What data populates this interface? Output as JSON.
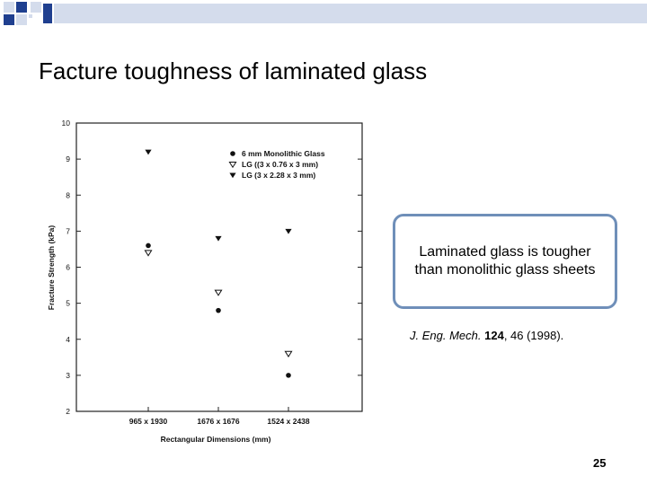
{
  "slide": {
    "title": "Facture toughness of laminated glass",
    "callout_text": "Laminated glass is tougher than monolithic glass sheets",
    "reference": {
      "journal": "J. Eng. Mech.",
      "volume": "124",
      "rest": ", 46 (1998).",
      "separator": " "
    },
    "page_number": "25"
  },
  "colors": {
    "deco_dark": "#1f3f8f",
    "deco_light": "#d4dcec",
    "callout_border": "#6f8fb9"
  },
  "chart_data": {
    "type": "scatter",
    "title": "",
    "xlabel": "Rectangular Dimensions (mm)",
    "ylabel": "Fracture Strength (kPa)",
    "categories": [
      "965 x 1930",
      "1676 x 1676",
      "1524 x 2438"
    ],
    "ylim": [
      2,
      10
    ],
    "yticks": [
      "2",
      "3",
      "4",
      "5",
      "6",
      "7",
      "8",
      "9",
      "10"
    ],
    "legend_position": "top-right",
    "grid": false,
    "series": [
      {
        "name": "6 mm Monolithic Glass",
        "marker": "filled-circle",
        "values": [
          6.6,
          4.8,
          3.0
        ]
      },
      {
        "name": "LG ((3 x 0.76 x 3 mm)",
        "marker": "open-triangle-down",
        "values": [
          6.4,
          5.3,
          3.6
        ]
      },
      {
        "name": "LG  (3 x 2.28 x 3 mm)",
        "marker": "filled-triangle-down",
        "values": [
          9.2,
          6.8,
          7.0
        ]
      }
    ]
  }
}
